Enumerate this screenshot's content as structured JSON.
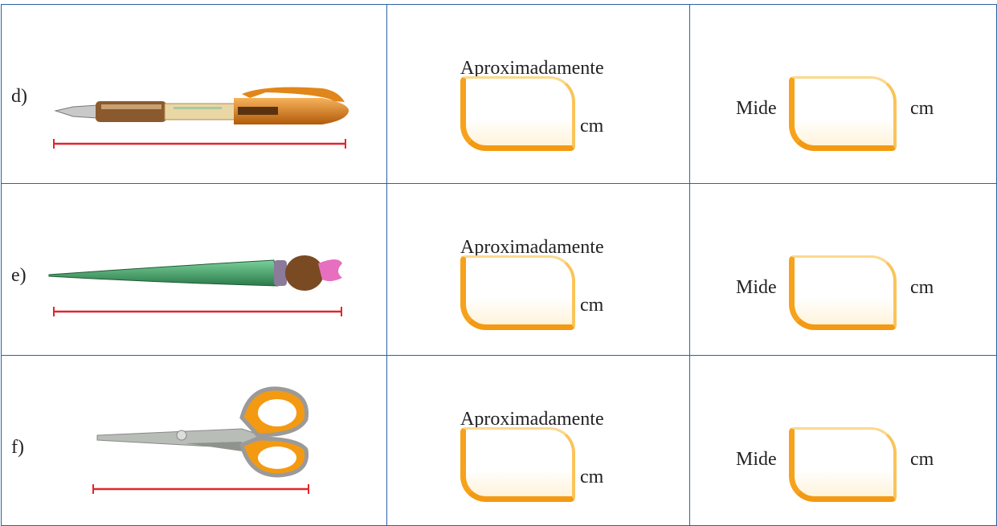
{
  "rows": [
    {
      "label": "d)",
      "approx": "Aproximadamente",
      "approx_unit": "cm",
      "measure": "Mide",
      "measure_unit": "cm"
    },
    {
      "label": "e)",
      "approx": "Aproximadamente",
      "approx_unit": "cm",
      "measure": "Mide",
      "measure_unit": "cm"
    },
    {
      "label": "f)",
      "approx": "Aproximadamente",
      "approx_unit": "cm",
      "measure": "Mide",
      "measure_unit": "cm"
    }
  ]
}
